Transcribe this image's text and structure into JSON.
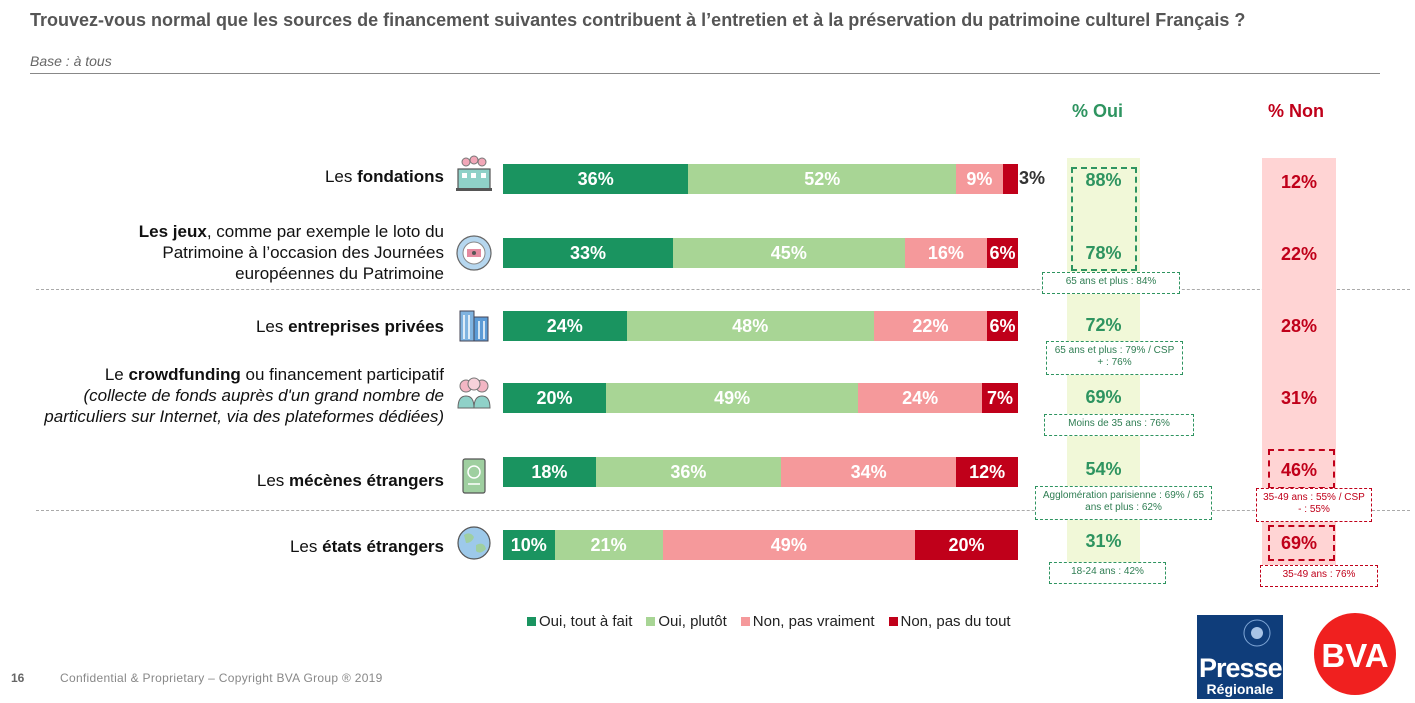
{
  "header": {
    "title": "Trouvez-vous normal que les sources de financement suivantes contribuent à l’entretien et à la préservation du patrimoine culturel Français ?",
    "subtitle": "Base : à tous"
  },
  "columns": {
    "oui": "% Oui",
    "non": "% Non"
  },
  "rows": [
    {
      "label_parts": [
        "Les ",
        "fondations"
      ],
      "icon": "foundation-building-icon"
    },
    {
      "label_parts": [
        "Les jeux",
        ", comme par exemple le loto du Patrimoine à l’occasion des Journées européennes du Patrimoine"
      ],
      "icon": "lottery-ball-icon"
    },
    {
      "label_parts": [
        "Les ",
        "entreprises privées"
      ],
      "icon": "office-building-icon"
    },
    {
      "label_parts": [
        "Le ",
        "crowdfunding",
        " ou financement participatif",
        "(collecte de fonds auprès d'un grand nombre de particuliers sur Internet, via des plateformes dédiées)"
      ],
      "icon": "crowd-people-icon"
    },
    {
      "label_parts": [
        "Les ",
        "mécènes étrangers"
      ],
      "icon": "passport-icon"
    },
    {
      "label_parts": [
        "Les ",
        "états étrangers"
      ],
      "icon": "globe-icon"
    }
  ],
  "chart_data": {
    "type": "bar",
    "orientation": "horizontal",
    "stacked": true,
    "categories": [
      "Les fondations",
      "Les jeux",
      "Les entreprises privées",
      "Le crowdfunding",
      "Les mécènes étrangers",
      "Les états étrangers"
    ],
    "series": [
      {
        "name": "Oui, tout à fait",
        "color": "#1a9460",
        "values": [
          36,
          33,
          24,
          20,
          18,
          10
        ],
        "labels": [
          "36%",
          "33%",
          "24%",
          "20%",
          "18%",
          "10%"
        ]
      },
      {
        "name": "Oui, plutôt",
        "color": "#a8d595",
        "values": [
          52,
          45,
          48,
          49,
          36,
          21
        ],
        "labels": [
          "52%",
          "45%",
          "48%",
          "49%",
          "36%",
          "21%"
        ]
      },
      {
        "name": "Non, pas vraiment",
        "color": "#f5999b",
        "values": [
          9,
          16,
          22,
          24,
          34,
          49
        ],
        "labels": [
          "9%",
          "16%",
          "22%",
          "24%",
          "34%",
          "49%"
        ]
      },
      {
        "name": "Non, pas du tout",
        "color": "#c0001a",
        "values": [
          3,
          6,
          6,
          7,
          12,
          20
        ],
        "labels": [
          "3%",
          "6%",
          "6%",
          "7%",
          "12%",
          "20%"
        ]
      }
    ],
    "pct_oui": [
      "88%",
      "78%",
      "72%",
      "69%",
      "54%",
      "31%"
    ],
    "pct_non": [
      "12%",
      "22%",
      "28%",
      "31%",
      "46%",
      "69%"
    ],
    "notes_oui": [
      "",
      "65 ans et plus : 84%",
      "65 ans et plus : 79% / CSP + : 76%",
      "Moins de 35 ans : 76%",
      "Agglomération parisienne : 69% / 65 ans et plus : 62%",
      "18-24 ans : 42%"
    ],
    "notes_non": [
      "",
      "",
      "",
      "",
      "35-49 ans : 55% / CSP - : 55%",
      "35-49 ans : 76%"
    ]
  },
  "legend": [
    "Oui, tout à fait",
    "Oui, plutôt",
    "Non, pas vraiment",
    "Non, pas du tout"
  ],
  "footer": {
    "page": "16",
    "text": "Confidential & Proprietary – Copyright BVA Group ®  2019"
  },
  "logos": {
    "presse_line1": "Presse",
    "presse_line2": "Régionale",
    "bva": "BVA"
  }
}
